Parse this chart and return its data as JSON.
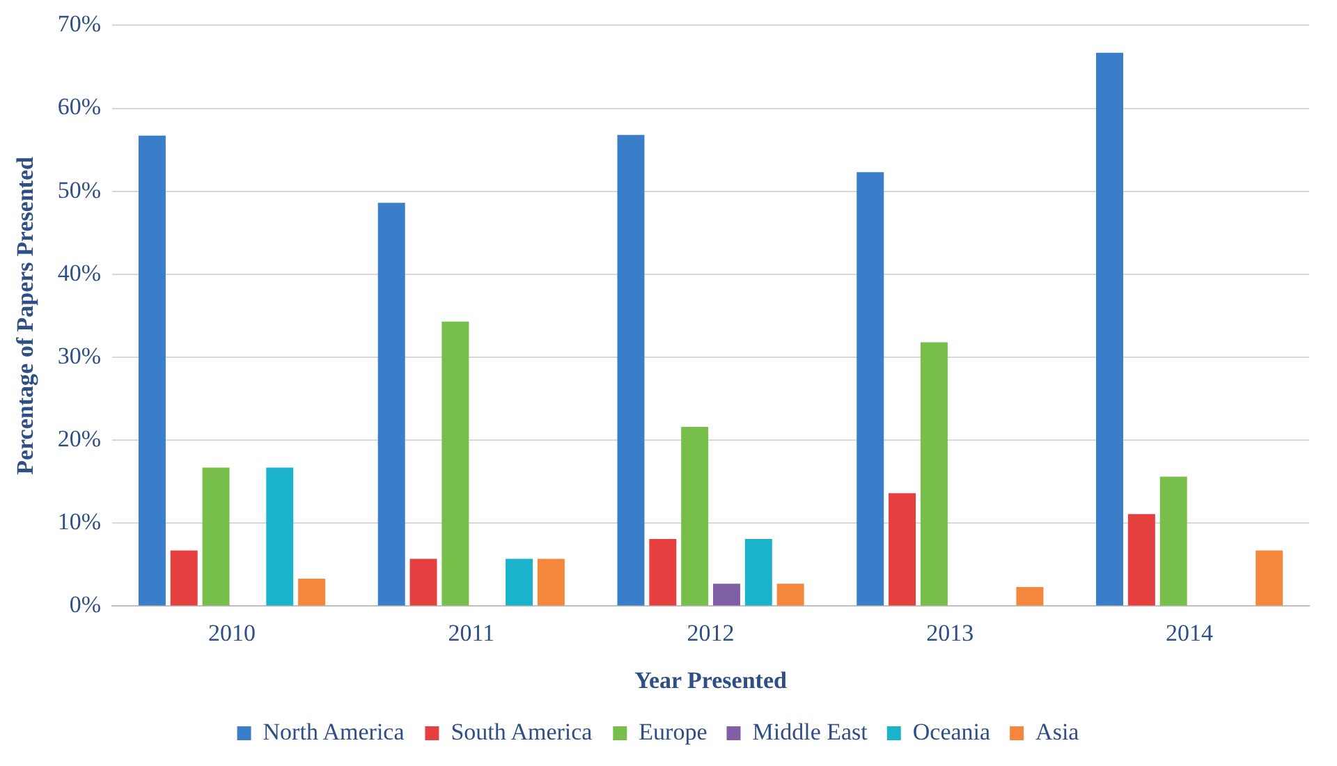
{
  "chart_data": {
    "type": "bar",
    "xlabel": "Year Presented",
    "ylabel": "Percentage of Papers Presented",
    "categories": [
      "2010",
      "2011",
      "2012",
      "2013",
      "2014"
    ],
    "series": [
      {
        "name": "North America",
        "color": "#3a7dc9",
        "values": [
          56.7,
          48.6,
          56.8,
          52.3,
          66.7
        ]
      },
      {
        "name": "South America",
        "color": "#e5403f",
        "values": [
          6.7,
          5.7,
          8.1,
          13.6,
          11.1
        ]
      },
      {
        "name": "Europe",
        "color": "#78be4a",
        "values": [
          16.7,
          34.3,
          21.6,
          31.8,
          15.6
        ]
      },
      {
        "name": "Middle East",
        "color": "#7f5fa6",
        "values": [
          0,
          0,
          2.7,
          0,
          0
        ]
      },
      {
        "name": "Oceania",
        "color": "#1ab3cb",
        "values": [
          16.7,
          5.7,
          8.1,
          0,
          0
        ]
      },
      {
        "name": "Asia",
        "color": "#f5873c",
        "values": [
          3.3,
          5.7,
          2.7,
          2.3,
          6.7
        ]
      }
    ],
    "ylim": [
      0,
      70
    ],
    "yticks": [
      {
        "value": 0,
        "label": "0%"
      },
      {
        "value": 10,
        "label": "10%"
      },
      {
        "value": 20,
        "label": "20%"
      },
      {
        "value": 30,
        "label": "30%"
      },
      {
        "value": 40,
        "label": "40%"
      },
      {
        "value": 50,
        "label": "50%"
      },
      {
        "value": 60,
        "label": "60%"
      },
      {
        "value": 70,
        "label": "70%"
      }
    ],
    "grid": "y",
    "legend": "bottom"
  }
}
